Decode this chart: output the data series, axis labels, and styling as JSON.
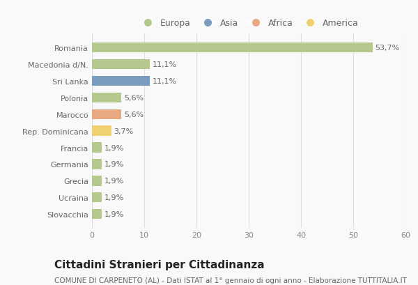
{
  "categories": [
    "Romania",
    "Macedonia d/N.",
    "Sri Lanka",
    "Polonia",
    "Marocco",
    "Rep. Dominicana",
    "Francia",
    "Germania",
    "Grecia",
    "Ucraina",
    "Slovacchia"
  ],
  "values": [
    53.7,
    11.1,
    11.1,
    5.6,
    5.6,
    3.7,
    1.9,
    1.9,
    1.9,
    1.9,
    1.9
  ],
  "labels": [
    "53,7%",
    "11,1%",
    "11,1%",
    "5,6%",
    "5,6%",
    "3,7%",
    "1,9%",
    "1,9%",
    "1,9%",
    "1,9%",
    "1,9%"
  ],
  "colors": [
    "#b5c98e",
    "#b5c98e",
    "#7b9bbf",
    "#b5c98e",
    "#e8a882",
    "#f0d070",
    "#b5c98e",
    "#b5c98e",
    "#b5c98e",
    "#b5c98e",
    "#b5c98e"
  ],
  "legend_labels": [
    "Europa",
    "Asia",
    "Africa",
    "America"
  ],
  "legend_colors": [
    "#b5c98e",
    "#7b9bbf",
    "#e8a882",
    "#f0d070"
  ],
  "title": "Cittadini Stranieri per Cittadinanza",
  "subtitle": "COMUNE DI CARPENETO (AL) - Dati ISTAT al 1° gennaio di ogni anno - Elaborazione TUTTITALIA.IT",
  "xlim": [
    0,
    60
  ],
  "xticks": [
    0,
    10,
    20,
    30,
    40,
    50,
    60
  ],
  "background_color": "#f9f9f9",
  "grid_color": "#dddddd",
  "bar_height": 0.6,
  "title_fontsize": 11,
  "subtitle_fontsize": 7.5,
  "label_fontsize": 8,
  "tick_fontsize": 8,
  "legend_fontsize": 9
}
